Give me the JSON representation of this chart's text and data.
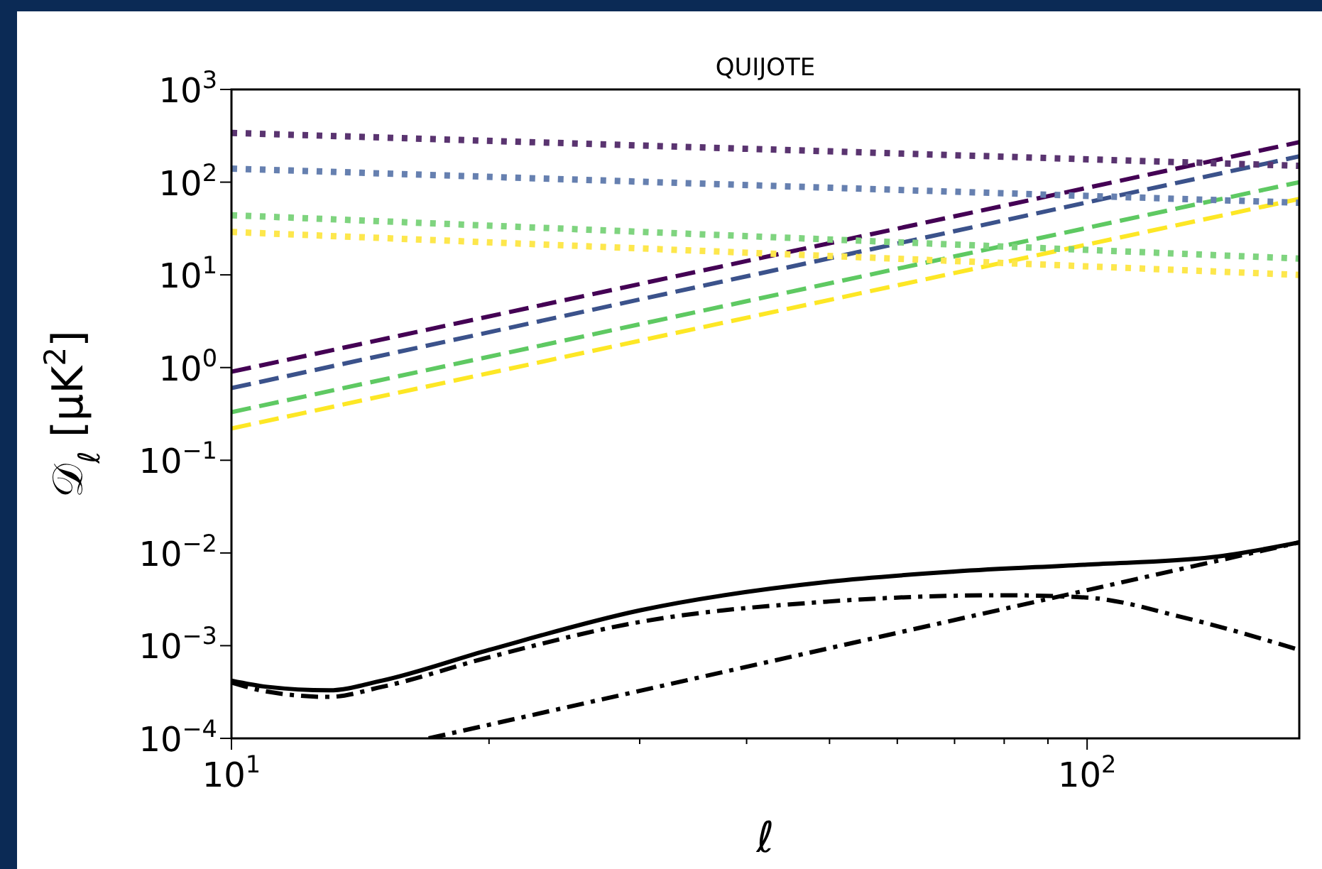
{
  "chart_data": {
    "type": "line",
    "title": "QUIJOTE",
    "xlabel": "ℓ",
    "ylabel": "𝒟$_{ℓ}$ [μK$^{2}$]",
    "log": "xy",
    "xlim": [
      10,
      177
    ],
    "ylim": [
      0.0001,
      1000
    ],
    "xticks": [
      {
        "value": 10,
        "label": "10$^{1}$"
      },
      {
        "value": 20,
        "label": null
      },
      {
        "value": 30,
        "label": null
      },
      {
        "value": 40,
        "label": null
      },
      {
        "value": 50,
        "label": null
      },
      {
        "value": 60,
        "label": null
      },
      {
        "value": 70,
        "label": null
      },
      {
        "value": 80,
        "label": null
      },
      {
        "value": 90,
        "label": null
      },
      {
        "value": 100,
        "label": "10$^{2}$"
      }
    ],
    "yticks": [
      {
        "value": 0.0001,
        "label": "10$^{−4}$"
      },
      {
        "value": 0.001,
        "label": "10$^{−3}$"
      },
      {
        "value": 0.01,
        "label": "10$^{−2}$"
      },
      {
        "value": 0.1,
        "label": "10$^{−1}$"
      },
      {
        "value": 1,
        "label": "10$^{0}$"
      },
      {
        "value": 10,
        "label": "10$^{1}$"
      },
      {
        "value": 100,
        "label": "10$^{2}$"
      },
      {
        "value": 1000,
        "label": "10$^{3}$"
      }
    ],
    "series": [
      {
        "color": "#440154",
        "line_style": "dashed",
        "x": [
          10,
          177
        ],
        "values": [
          0.9,
          270
        ]
      },
      {
        "color": "#3b528b",
        "line_style": "dashed",
        "x": [
          10,
          177
        ],
        "values": [
          0.6,
          190
        ]
      },
      {
        "color": "#5ec962",
        "line_style": "dashed",
        "x": [
          10,
          177
        ],
        "values": [
          0.33,
          100
        ]
      },
      {
        "color": "#fde725",
        "line_style": "dashed",
        "x": [
          10,
          177
        ],
        "values": [
          0.22,
          66
        ]
      },
      {
        "color": "#5a3470",
        "line_style": "dotted",
        "x": [
          10,
          177
        ],
        "values": [
          340,
          150
        ]
      },
      {
        "color": "#6680b0",
        "line_style": "dotted",
        "x": [
          10,
          177
        ],
        "values": [
          140,
          60
        ]
      },
      {
        "color": "#7fd47f",
        "line_style": "dotted",
        "x": [
          10,
          177
        ],
        "values": [
          44,
          15
        ]
      },
      {
        "color": "#fde74c",
        "line_style": "dotted",
        "x": [
          10,
          177
        ],
        "values": [
          29,
          10
        ]
      },
      {
        "color": "#000000",
        "line_style": "solid",
        "x": [
          10,
          11,
          13,
          15,
          20,
          30,
          50,
          70,
          100,
          140,
          177
        ],
        "values": [
          0.00042,
          0.00036,
          0.00033,
          0.00042,
          0.0009,
          0.0024,
          0.0049,
          0.0063,
          0.0075,
          0.009,
          0.013
        ]
      },
      {
        "color": "#000000",
        "line_style": "dashdot",
        "x": [
          10,
          11,
          13,
          15,
          20,
          30,
          50,
          80,
          100,
          130,
          177
        ],
        "values": [
          0.0004,
          0.00032,
          0.00028,
          0.00036,
          0.00075,
          0.0018,
          0.003,
          0.0035,
          0.0033,
          0.002,
          0.0009
        ]
      },
      {
        "color": "#000000",
        "line_style": "dashdot",
        "x": [
          17,
          177
        ],
        "values": [
          0.0001,
          0.013
        ]
      }
    ]
  }
}
